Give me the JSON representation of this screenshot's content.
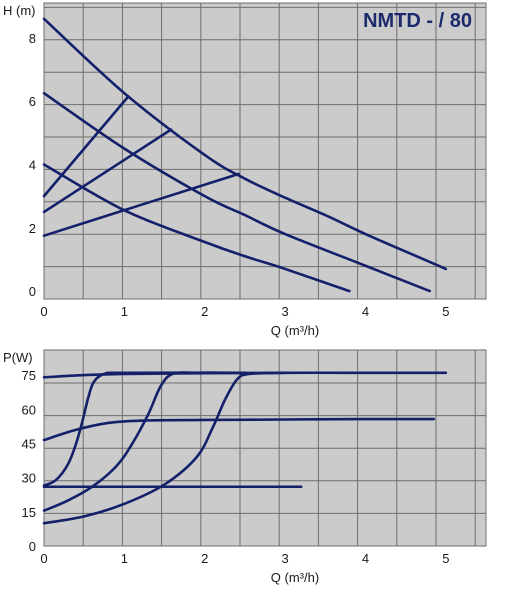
{
  "colors": {
    "plot_bg": "#cbcbcb",
    "grid": "#6e6e6e",
    "curve": "#14206a",
    "text": "#1a1a1a"
  },
  "chart_data": [
    {
      "type": "line",
      "title": "NMTD - / 80",
      "ylabel": "H (m)",
      "xlabel": "Q (m³/h)",
      "xlim": [
        0,
        5.5
      ],
      "ylim": [
        -0.25,
        9.1
      ],
      "grid": true,
      "xticks": [
        "0",
        "1",
        "2",
        "3",
        "4",
        "5"
      ],
      "yticks": [
        "0",
        "2",
        "4",
        "6",
        "8"
      ],
      "xtick_values": [
        0,
        1,
        2,
        3,
        4,
        5
      ],
      "ytick_values": [
        0,
        2,
        4,
        6,
        8
      ],
      "series": [
        {
          "points": [
            [
              0,
              8.6
            ],
            [
              1,
              6.25
            ],
            [
              2,
              4.3
            ],
            [
              2.5,
              3.55
            ],
            [
              3,
              2.95
            ],
            [
              3.5,
              2.4
            ],
            [
              4,
              1.8
            ],
            [
              4.5,
              1.25
            ],
            [
              5,
              0.7
            ]
          ]
        },
        {
          "points": [
            [
              0,
              6.25
            ],
            [
              1,
              4.5
            ],
            [
              2,
              3.0
            ],
            [
              2.5,
              2.4
            ],
            [
              3,
              1.8
            ],
            [
              4,
              0.8
            ],
            [
              4.8,
              0.0
            ]
          ]
        },
        {
          "points": [
            [
              0,
              4.0
            ],
            [
              1,
              2.55
            ],
            [
              2,
              1.55
            ],
            [
              2.5,
              1.1
            ],
            [
              3,
              0.7
            ],
            [
              3.8,
              0.0
            ]
          ]
        },
        {
          "points": [
            [
              0,
              3.0
            ],
            [
              1.05,
              6.15
            ]
          ]
        },
        {
          "points": [
            [
              0,
              2.5
            ],
            [
              1.58,
              5.1
            ]
          ]
        },
        {
          "points": [
            [
              0,
              1.75
            ],
            [
              2.42,
              3.7
            ]
          ]
        }
      ]
    },
    {
      "type": "line",
      "title": "",
      "ylabel": "P(W)",
      "xlabel": "Q (m³/h)",
      "xlim": [
        0,
        5.5
      ],
      "ylim": [
        0,
        86
      ],
      "grid": true,
      "xticks": [
        "0",
        "1",
        "2",
        "3",
        "4",
        "5"
      ],
      "yticks": [
        "0",
        "15",
        "30",
        "45",
        "60",
        "75"
      ],
      "xtick_values": [
        0,
        1,
        2,
        3,
        4,
        5
      ],
      "ytick_values": [
        0,
        15,
        30,
        45,
        60,
        75
      ],
      "series": [
        {
          "points": [
            [
              0,
              74
            ],
            [
              0.5,
              75
            ],
            [
              1,
              75.5
            ],
            [
              2,
              75.8
            ],
            [
              3,
              76
            ],
            [
              4,
              76
            ],
            [
              5,
              76
            ]
          ]
        },
        {
          "points": [
            [
              0,
              46.5
            ],
            [
              0.4,
              51
            ],
            [
              0.8,
              54
            ],
            [
              1.2,
              55
            ],
            [
              2,
              55.3
            ],
            [
              3,
              55.5
            ],
            [
              4,
              55.7
            ],
            [
              4.85,
              55.7
            ]
          ]
        },
        {
          "points": [
            [
              0,
              26
            ],
            [
              1,
              26
            ],
            [
              2,
              26
            ],
            [
              3.2,
              26
            ]
          ]
        },
        {
          "points": [
            [
              0,
              26.5
            ],
            [
              0.15,
              29
            ],
            [
              0.3,
              36
            ],
            [
              0.4,
              45
            ],
            [
              0.48,
              55
            ],
            [
              0.55,
              65
            ],
            [
              0.62,
              72
            ],
            [
              0.75,
              75.5
            ],
            [
              1.0,
              76
            ],
            [
              2.5,
              76
            ]
          ]
        },
        {
          "points": [
            [
              0,
              15.5
            ],
            [
              0.3,
              20
            ],
            [
              0.6,
              26
            ],
            [
              0.9,
              35
            ],
            [
              1.1,
              45
            ],
            [
              1.3,
              58
            ],
            [
              1.45,
              70
            ],
            [
              1.6,
              75.5
            ],
            [
              1.9,
              76
            ],
            [
              2.5,
              76
            ]
          ]
        },
        {
          "points": [
            [
              0,
              10
            ],
            [
              0.5,
              13
            ],
            [
              1.0,
              18.5
            ],
            [
              1.5,
              27
            ],
            [
              1.9,
              39
            ],
            [
              2.1,
              52
            ],
            [
              2.25,
              64
            ],
            [
              2.4,
              73
            ],
            [
              2.55,
              75.5
            ],
            [
              3.0,
              76
            ]
          ]
        }
      ]
    }
  ]
}
